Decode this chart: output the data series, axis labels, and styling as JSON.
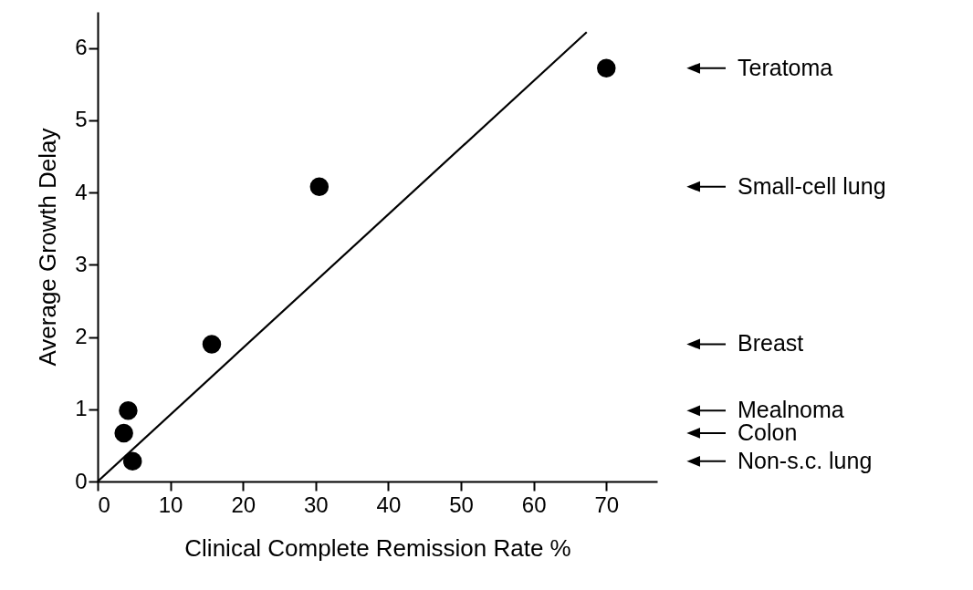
{
  "chart_data": {
    "type": "scatter",
    "xlabel": "Clinical Complete Remission Rate %",
    "ylabel": "Average Growth Delay",
    "xlim": [
      0,
      77
    ],
    "ylim": [
      0,
      6.5
    ],
    "xticks": [
      0,
      10,
      20,
      30,
      40,
      50,
      60,
      70
    ],
    "yticks": [
      0,
      1,
      2,
      3,
      4,
      5,
      6
    ],
    "grid": false,
    "series": [
      {
        "color": "#000000",
        "marker": "circle",
        "x": [
          70,
          30.5,
          15.7,
          4.2,
          3.6,
          4.8
        ],
        "values": [
          5.72,
          4.08,
          1.9,
          0.98,
          0.67,
          0.28
        ]
      },
      {
        "type": "line",
        "color": "#000000",
        "line_style": "solid",
        "x": [
          0,
          67.3
        ],
        "values": [
          0,
          6.22
        ]
      }
    ],
    "annotations": [
      "Teratoma",
      "Small-cell lung",
      "Breast",
      "Mealnoma",
      "Colon",
      "Non-s.c. lung"
    ]
  }
}
